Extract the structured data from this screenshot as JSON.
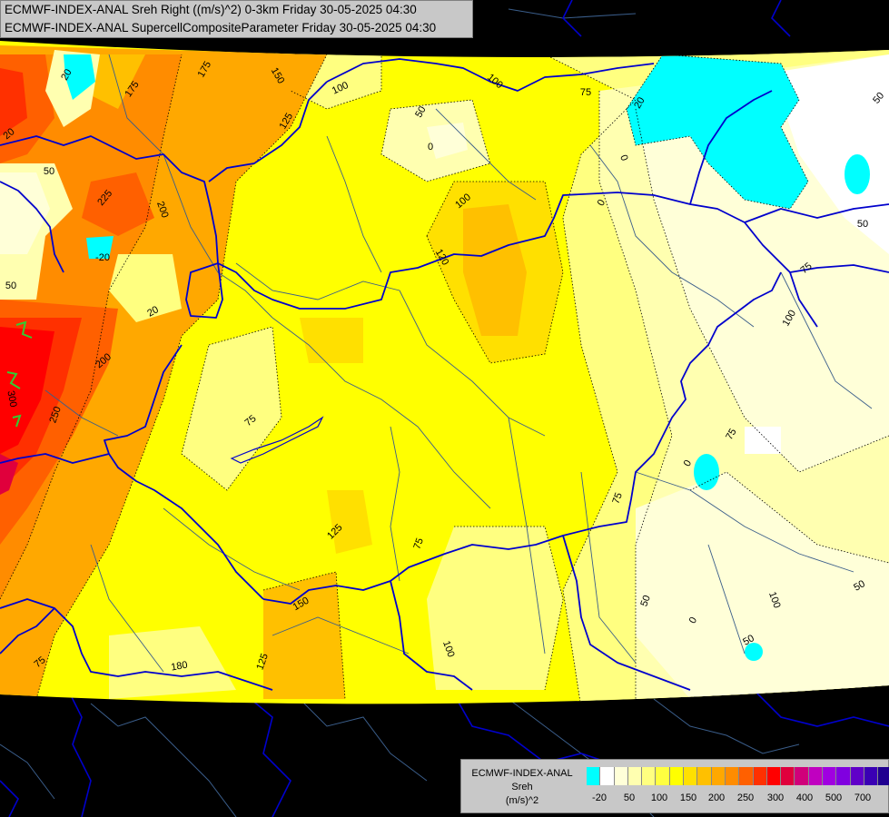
{
  "header": {
    "line1": "ECMWF-INDEX-ANAL Sreh Right ((m/s)^2) 0-3km Friday 30-05-2025 04:30",
    "line2": "ECMWF-INDEX-ANAL SupercellCompositeParameter Friday 30-05-2025 04:30"
  },
  "legend": {
    "title_line1": "ECMWF-INDEX-ANAL",
    "title_line2": "Sreh",
    "title_line3": "(m/s)^2",
    "colors": [
      "#00ffff",
      "#ffffff",
      "#ffffd8",
      "#ffffb0",
      "#ffff80",
      "#ffff40",
      "#ffff00",
      "#ffe000",
      "#ffc000",
      "#ffa800",
      "#ff8c00",
      "#ff6000",
      "#ff3000",
      "#ff0000",
      "#e0003c",
      "#d0007a",
      "#c000c0",
      "#a000e0",
      "#8000e0",
      "#6000c8",
      "#3a00b4",
      "#200090"
    ],
    "ticks": [
      "-20",
      "50",
      "100",
      "150",
      "200",
      "250",
      "300",
      "400",
      "500",
      "700"
    ]
  },
  "map_labels": [
    {
      "text": "20"
    },
    {
      "text": "175"
    },
    {
      "text": "175"
    },
    {
      "text": "150"
    },
    {
      "text": "125"
    },
    {
      "text": "100"
    },
    {
      "text": "100"
    },
    {
      "text": "75"
    },
    {
      "text": "50"
    },
    {
      "text": "0"
    },
    {
      "text": "20"
    },
    {
      "text": "20"
    },
    {
      "text": "50"
    },
    {
      "text": "225"
    },
    {
      "text": "200"
    },
    {
      "text": "-20"
    },
    {
      "text": "50"
    },
    {
      "text": "20"
    },
    {
      "text": "100"
    },
    {
      "text": "120"
    },
    {
      "text": "200"
    },
    {
      "text": "300"
    },
    {
      "text": "250"
    },
    {
      "text": "75"
    },
    {
      "text": "75"
    },
    {
      "text": "125"
    },
    {
      "text": "75"
    },
    {
      "text": "75"
    },
    {
      "text": "150"
    },
    {
      "text": "125"
    },
    {
      "text": "100"
    },
    {
      "text": "180"
    },
    {
      "text": "75"
    },
    {
      "text": "50"
    },
    {
      "text": "100"
    },
    {
      "text": "0"
    },
    {
      "text": "50"
    },
    {
      "text": "75"
    },
    {
      "text": "100"
    },
    {
      "text": "0"
    },
    {
      "text": "0"
    },
    {
      "text": "50"
    },
    {
      "text": "50"
    },
    {
      "text": "50"
    },
    {
      "text": "0"
    }
  ]
}
